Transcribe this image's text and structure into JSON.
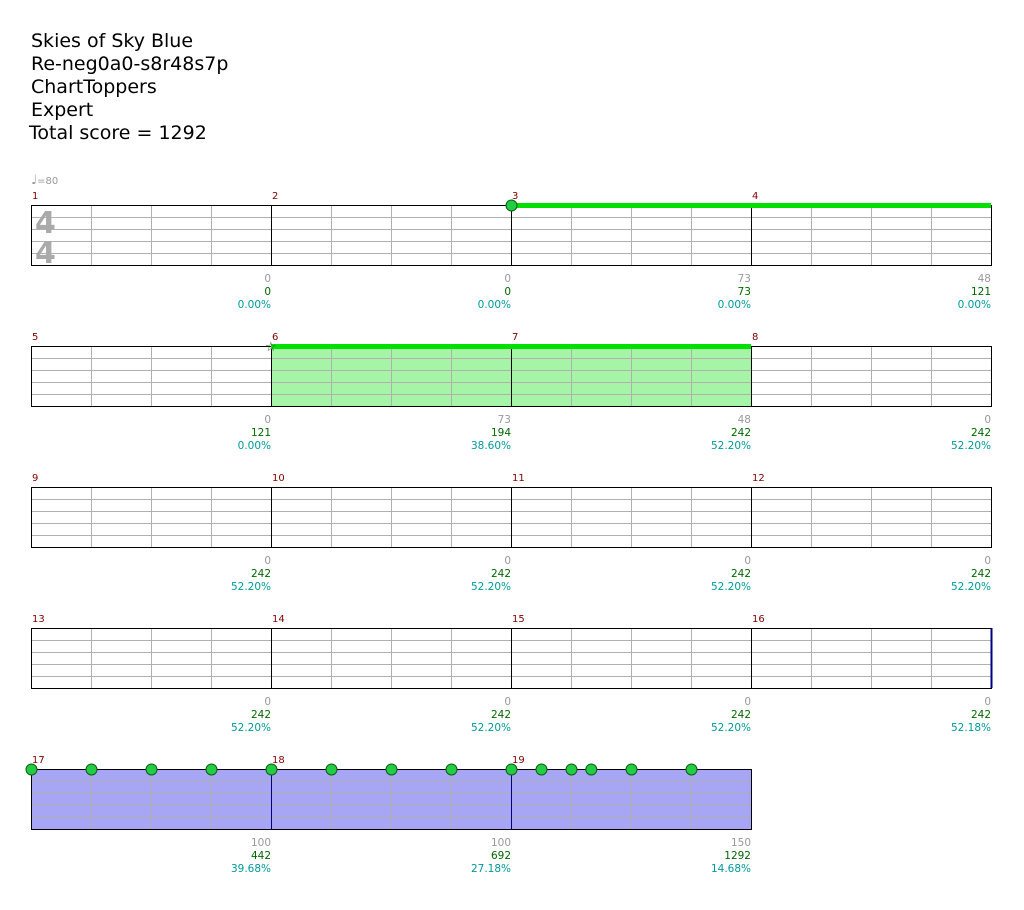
{
  "header": {
    "song": "Skies of Sky Blue",
    "chart_id": "Re-neg0a0-s8r48s7p",
    "author": "ChartToppers",
    "difficulty": "Expert",
    "total_score": "Total score = 1292"
  },
  "tempo": {
    "glyph": "♩",
    "text": "=80"
  },
  "time_signature": {
    "top": "4",
    "bottom": "4"
  },
  "colors": {
    "grid_line": "#b0b0b0",
    "bar_line": "#000000",
    "measure_number": "#800000",
    "sustain": "#00e000",
    "sustain_fill": "#a6f5a6",
    "solo_fill": "#a6a6f5",
    "note_fill": "#22cc44",
    "base_score": "#999999",
    "cumulative_score": "#006600",
    "percent": "#009999"
  },
  "rows": [
    {
      "measures": [
        1,
        2,
        3,
        4
      ],
      "scores": [
        {
          "base": "0",
          "total": "0",
          "pct": "0.00%"
        },
        {
          "base": "0",
          "total": "0",
          "pct": "0.00%"
        },
        {
          "base": "73",
          "total": "73",
          "pct": "0.00%"
        },
        {
          "base": "48",
          "total": "121",
          "pct": "0.00%"
        }
      ],
      "notes": [
        {
          "beat": 8
        }
      ],
      "sustains": [
        {
          "from": 8,
          "to": 16
        }
      ],
      "sp_fill": [],
      "solo": null,
      "star": null
    },
    {
      "measures": [
        5,
        6,
        7,
        8
      ],
      "scores": [
        {
          "base": "0",
          "total": "121",
          "pct": "0.00%"
        },
        {
          "base": "73",
          "total": "194",
          "pct": "38.60%"
        },
        {
          "base": "48",
          "total": "242",
          "pct": "52.20%"
        },
        {
          "base": "0",
          "total": "242",
          "pct": "52.20%"
        }
      ],
      "notes": [],
      "sustains": [
        {
          "from": 4,
          "to": 12
        }
      ],
      "sp_fill": [
        {
          "from": 4,
          "to": 12
        }
      ],
      "solo": null,
      "star": {
        "beat": 4
      }
    },
    {
      "measures": [
        9,
        10,
        11,
        12
      ],
      "scores": [
        {
          "base": "0",
          "total": "242",
          "pct": "52.20%"
        },
        {
          "base": "0",
          "total": "242",
          "pct": "52.20%"
        },
        {
          "base": "0",
          "total": "242",
          "pct": "52.20%"
        },
        {
          "base": "0",
          "total": "242",
          "pct": "52.20%"
        }
      ],
      "notes": [],
      "sustains": [],
      "sp_fill": [],
      "solo": null,
      "star": null
    },
    {
      "measures": [
        13,
        14,
        15,
        16
      ],
      "scores": [
        {
          "base": "0",
          "total": "242",
          "pct": "52.20%"
        },
        {
          "base": "0",
          "total": "242",
          "pct": "52.20%"
        },
        {
          "base": "0",
          "total": "242",
          "pct": "52.20%"
        },
        {
          "base": "0",
          "total": "242",
          "pct": "52.18%"
        }
      ],
      "notes": [],
      "sustains": [],
      "sp_fill": [],
      "solo": null,
      "star": null
    },
    {
      "measures": [
        17,
        18,
        19
      ],
      "scores": [
        {
          "base": "100",
          "total": "442",
          "pct": "39.68%"
        },
        {
          "base": "100",
          "total": "692",
          "pct": "27.18%"
        },
        {
          "base": "150",
          "total": "1292",
          "pct": "14.68%"
        }
      ],
      "notes": [
        {
          "beat": 0
        },
        {
          "beat": 1
        },
        {
          "beat": 2
        },
        {
          "beat": 3
        },
        {
          "beat": 4
        },
        {
          "beat": 5
        },
        {
          "beat": 6
        },
        {
          "beat": 7
        },
        {
          "beat": 8
        },
        {
          "beat": 8.5
        },
        {
          "beat": 9
        },
        {
          "beat": 9.33
        },
        {
          "beat": 10
        },
        {
          "beat": 11
        }
      ],
      "sustains": [],
      "sp_fill": [],
      "solo": {
        "from": 0,
        "to": 12
      },
      "star": null
    }
  ]
}
